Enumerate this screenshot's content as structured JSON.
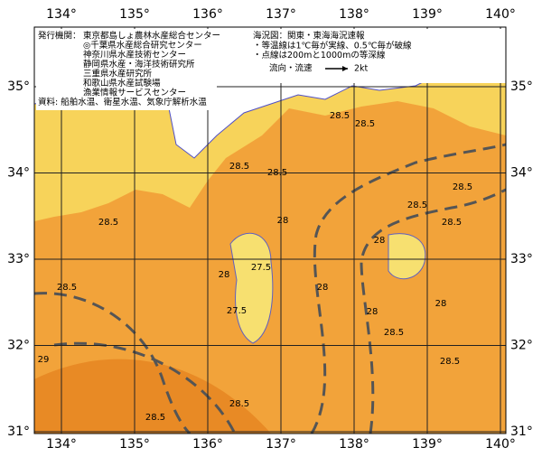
{
  "map": {
    "lon_labels": [
      "134°",
      "135°",
      "136°",
      "137°",
      "138°",
      "139°",
      "140°"
    ],
    "lat_labels": [
      "35°",
      "34°",
      "33°",
      "32°",
      "31°"
    ],
    "publisher_label": "発行機関：",
    "publishers": [
      "東京都島しょ農林水産総合センター",
      "◎千葉県水産総合研究センター",
      "神奈川県水産技術センター",
      "静岡県水産・海洋技術研究所",
      "三重県水産研究所",
      "和歌山県水産試験場",
      "漁業情報サービスセンター"
    ],
    "source": "資料: 船舶水温、衛星水温、気象庁解析水温",
    "title": "海況図：関東・東海海況速報",
    "notes": [
      "・等温線は1℃毎が実線、0.5℃毎が破線",
      "・点線は200mと1000mの等深線"
    ],
    "legend_label": "流向・流速",
    "legend_unit": "2kt",
    "contour_labels": [
      "28.5",
      "28.5",
      "28.5",
      "28.5",
      "28.5",
      "28.5",
      "28",
      "27.5",
      "27.5",
      "28",
      "28",
      "28",
      "28.5",
      "28.5",
      "28.5",
      "28.5",
      "28.5",
      "28.5",
      "28",
      "28",
      "28.5",
      "29"
    ]
  }
}
